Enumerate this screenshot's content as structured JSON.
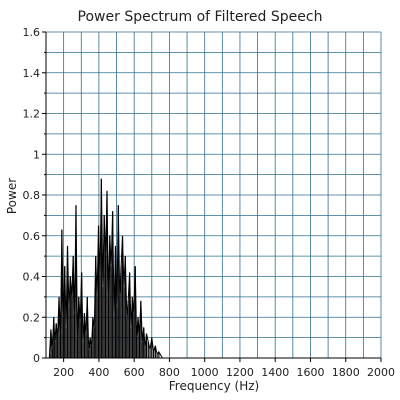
{
  "chart_data": {
    "type": "line",
    "title": "Power Spectrum of Filtered Speech",
    "xlabel": "Frequency (Hz)",
    "ylabel": "Power",
    "xlim": [
      100,
      2000
    ],
    "ylim": [
      0,
      1.6
    ],
    "x_ticks": [
      200,
      400,
      600,
      800,
      1000,
      1200,
      1400,
      1600,
      1800,
      2000
    ],
    "y_ticks": [
      0,
      0.2,
      0.4,
      0.6,
      0.8,
      1,
      1.2,
      1.4,
      1.6
    ],
    "y_tick_labels": [
      "0",
      "0.2",
      "0.4",
      "0.6",
      "0.8",
      "1",
      "1.2",
      "1.4",
      "1.6"
    ],
    "grid": true,
    "colors": {
      "line": "#000000",
      "grid": "#2f6f8f",
      "axis": "#000000",
      "background": "#ffffff"
    },
    "series": [
      {
        "x": [
          120,
          128,
          136,
          144,
          150,
          158,
          166,
          174,
          182,
          190,
          198,
          206,
          214,
          222,
          230,
          238,
          246,
          254,
          262,
          270,
          278,
          286,
          294,
          302,
          310,
          318,
          326,
          334,
          342,
          350,
          358,
          366,
          374,
          382,
          390,
          398,
          406,
          414,
          422,
          430,
          438,
          446,
          454,
          462,
          470,
          478,
          486,
          494,
          502,
          510,
          518,
          526,
          534,
          542,
          550,
          558,
          566,
          574,
          582,
          590,
          598,
          606,
          614,
          622,
          630,
          638,
          646,
          654,
          662,
          670,
          680,
          690,
          700,
          710,
          720,
          730,
          740,
          760
        ],
        "values": [
          0.02,
          0.14,
          0.05,
          0.2,
          0.08,
          0.17,
          0.1,
          0.3,
          0.12,
          0.63,
          0.2,
          0.45,
          0.15,
          0.55,
          0.25,
          0.4,
          0.3,
          0.5,
          0.22,
          0.75,
          0.1,
          0.3,
          0.18,
          0.42,
          0.08,
          0.22,
          0.12,
          0.3,
          0.04,
          0.1,
          0.06,
          0.2,
          0.15,
          0.5,
          0.3,
          0.65,
          0.4,
          0.88,
          0.35,
          0.7,
          0.5,
          0.82,
          0.3,
          0.6,
          0.45,
          0.72,
          0.2,
          0.55,
          0.25,
          0.75,
          0.3,
          0.45,
          0.6,
          0.35,
          0.5,
          0.2,
          0.28,
          0.42,
          0.15,
          0.3,
          0.22,
          0.45,
          0.1,
          0.2,
          0.12,
          0.28,
          0.08,
          0.15,
          0.05,
          0.12,
          0.08,
          0.04,
          0.1,
          0.03,
          0.06,
          0.02,
          0.03,
          0.0
        ]
      }
    ]
  }
}
